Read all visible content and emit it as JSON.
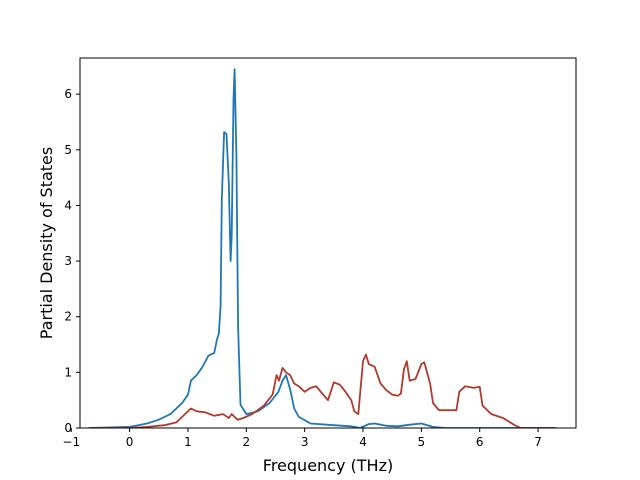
{
  "chart_data": {
    "type": "line",
    "title": "",
    "xlabel": "Frequency (THz)",
    "ylabel": "Partial Density of States",
    "xlim": [
      -0.85,
      7.65
    ],
    "ylim": [
      0,
      6.65
    ],
    "xticks": [
      -1,
      0,
      1,
      2,
      3,
      4,
      5,
      6,
      7
    ],
    "yticks": [
      0,
      1,
      2,
      3,
      4,
      5,
      6
    ],
    "grid": false,
    "series": [
      {
        "color": "#1f77b4",
        "x": [
          -0.7,
          0.0,
          0.3,
          0.5,
          0.7,
          0.9,
          1.0,
          1.05,
          1.15,
          1.25,
          1.35,
          1.45,
          1.5,
          1.53,
          1.56,
          1.58,
          1.62,
          1.66,
          1.7,
          1.73,
          1.75,
          1.78,
          1.8,
          1.83,
          1.86,
          1.9,
          2.0,
          2.2,
          2.4,
          2.55,
          2.62,
          2.68,
          2.75,
          2.82,
          2.9,
          3.1,
          3.5,
          3.8,
          3.95,
          4.1,
          4.2,
          4.4,
          4.6,
          4.8,
          5.0,
          5.2,
          5.4,
          6.0,
          6.5,
          7.3
        ],
        "values": [
          0.0,
          0.02,
          0.08,
          0.15,
          0.25,
          0.45,
          0.6,
          0.85,
          0.95,
          1.1,
          1.3,
          1.35,
          1.6,
          1.7,
          2.2,
          4.1,
          5.32,
          5.28,
          4.4,
          3.0,
          3.45,
          5.9,
          6.45,
          4.9,
          1.8,
          0.42,
          0.25,
          0.3,
          0.45,
          0.65,
          0.85,
          0.95,
          0.7,
          0.35,
          0.2,
          0.08,
          0.05,
          0.03,
          0.0,
          0.07,
          0.08,
          0.04,
          0.03,
          0.06,
          0.08,
          0.02,
          0.0,
          0.0,
          0.0,
          0.0
        ]
      },
      {
        "color": "#b03a2e",
        "x": [
          -0.7,
          0.0,
          0.3,
          0.6,
          0.8,
          0.95,
          1.05,
          1.15,
          1.3,
          1.45,
          1.6,
          1.7,
          1.75,
          1.8,
          1.85,
          1.95,
          2.1,
          2.3,
          2.45,
          2.52,
          2.56,
          2.62,
          2.68,
          2.75,
          2.82,
          2.9,
          3.0,
          3.1,
          3.2,
          3.3,
          3.4,
          3.5,
          3.6,
          3.7,
          3.8,
          3.85,
          3.92,
          4.0,
          4.05,
          4.1,
          4.2,
          4.3,
          4.4,
          4.5,
          4.6,
          4.65,
          4.7,
          4.75,
          4.8,
          4.9,
          5.0,
          5.05,
          5.15,
          5.2,
          5.3,
          5.5,
          5.6,
          5.65,
          5.75,
          5.9,
          6.0,
          6.05,
          6.2,
          6.4,
          6.6,
          6.7,
          7.3
        ],
        "values": [
          0.0,
          0.0,
          0.02,
          0.05,
          0.1,
          0.25,
          0.35,
          0.3,
          0.28,
          0.22,
          0.25,
          0.18,
          0.25,
          0.2,
          0.15,
          0.18,
          0.25,
          0.4,
          0.6,
          0.95,
          0.85,
          1.08,
          1.0,
          0.95,
          0.8,
          0.75,
          0.65,
          0.72,
          0.75,
          0.62,
          0.5,
          0.82,
          0.78,
          0.65,
          0.5,
          0.3,
          0.25,
          1.2,
          1.32,
          1.15,
          1.1,
          0.8,
          0.68,
          0.6,
          0.58,
          0.62,
          1.05,
          1.2,
          0.85,
          0.88,
          1.15,
          1.18,
          0.8,
          0.45,
          0.32,
          0.32,
          0.32,
          0.65,
          0.75,
          0.72,
          0.74,
          0.4,
          0.25,
          0.18,
          0.05,
          0.0,
          0.0
        ]
      }
    ]
  }
}
